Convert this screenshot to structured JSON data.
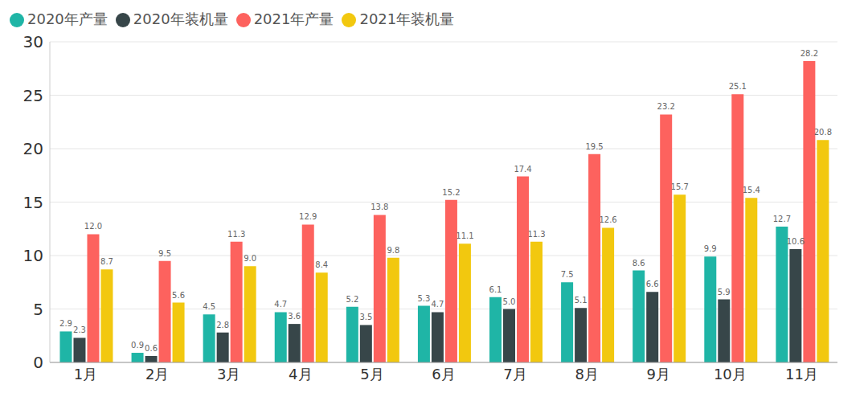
{
  "chart_data": {
    "type": "bar",
    "categories": [
      "1月",
      "2月",
      "3月",
      "4月",
      "5月",
      "6月",
      "7月",
      "8月",
      "9月",
      "10月",
      "11月"
    ],
    "series": [
      {
        "name": "2020年产量",
        "color": "#1fb5a6",
        "values": [
          2.9,
          0.9,
          4.5,
          4.7,
          5.2,
          5.3,
          6.1,
          7.5,
          8.6,
          9.9,
          12.7
        ],
        "value_labels": [
          "2.9",
          "0.9",
          "4.5",
          "4.7",
          "5.2",
          "5.3",
          "6.1",
          "7.5",
          "8.6",
          "9.9",
          "12.7"
        ]
      },
      {
        "name": "2020年装机量",
        "color": "#374649",
        "values": [
          2.3,
          0.6,
          2.8,
          3.6,
          3.5,
          4.7,
          5.0,
          5.1,
          6.6,
          5.9,
          10.6
        ],
        "value_labels": [
          "2.3",
          "0.6",
          "2.8",
          "3.6",
          "3.5",
          "4.7",
          "5.0",
          "5.1",
          "6.6",
          "5.9",
          "10.6"
        ]
      },
      {
        "name": "2021年产量",
        "color": "#fd625e",
        "values": [
          12.0,
          9.5,
          11.3,
          12.9,
          13.8,
          15.2,
          17.4,
          19.5,
          23.2,
          25.1,
          28.2
        ],
        "value_labels": [
          "12.0",
          "9.5",
          "11.3",
          "12.9",
          "13.8",
          "15.2",
          "17.4",
          "19.5",
          "23.2",
          "25.1",
          "28.2"
        ]
      },
      {
        "name": "2021年装机量",
        "color": "#f2c80f",
        "values": [
          8.7,
          5.6,
          9.0,
          8.4,
          9.8,
          11.1,
          11.3,
          12.6,
          15.7,
          15.4,
          20.8
        ],
        "value_labels": [
          "8.7",
          "5.6",
          "9.0",
          "8.4",
          "9.8",
          "11.1",
          "11.3",
          "12.6",
          "15.7",
          "15.4",
          "20.8"
        ]
      }
    ],
    "ylim": [
      0,
      30
    ],
    "yticks": [
      0,
      5,
      10,
      15,
      20,
      25,
      30
    ],
    "grid": true,
    "legend": "top-left",
    "data_labels": true
  }
}
